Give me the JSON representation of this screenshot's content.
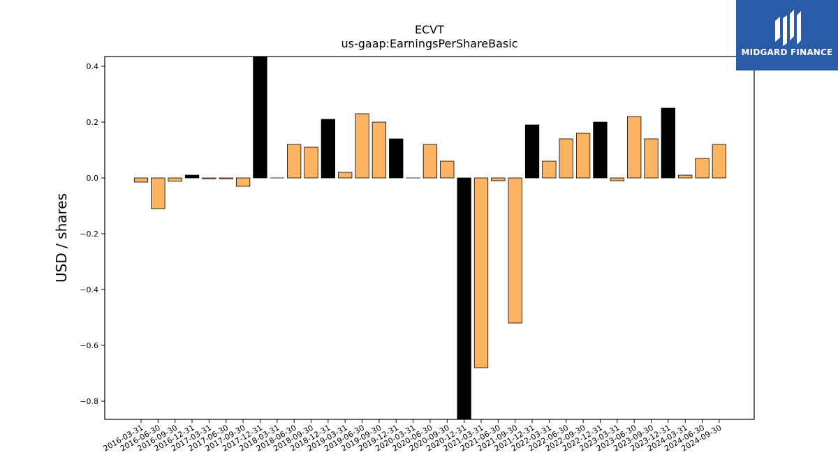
{
  "logo": {
    "text": "MIDGARD FINANCE",
    "icon": "midgard-logo-icon",
    "bg_color": "#2a5ba8"
  },
  "chart_data": {
    "type": "bar",
    "title": "ECVT",
    "subtitle": "us-gaap:EarningsPerShareBasic",
    "xlabel": "",
    "ylabel": "USD / shares",
    "ylim": [
      -0.865,
      0.435
    ],
    "yticks": [
      -0.8,
      -0.6,
      -0.4,
      -0.2,
      0.0,
      0.2,
      0.4
    ],
    "ytick_labels": [
      "−0.8",
      "−0.6",
      "−0.4",
      "−0.2",
      "0.0",
      "0.2",
      "0.4"
    ],
    "grid": false,
    "legend": "none",
    "colors": {
      "quarter": "#fdb462",
      "year_end": "#000000",
      "edge": "#000000"
    },
    "categories": [
      "2016-03-31",
      "2016-06-30",
      "2016-09-30",
      "2016-12-31",
      "2017-03-31",
      "2017-06-30",
      "2017-09-30",
      "2017-12-31",
      "2018-03-31",
      "2018-06-30",
      "2018-09-30",
      "2018-12-31",
      "2019-03-31",
      "2019-06-30",
      "2019-09-30",
      "2019-12-31",
      "2020-03-31",
      "2020-06-30",
      "2020-09-30",
      "2020-12-31",
      "2021-03-31",
      "2021-06-30",
      "2021-09-30",
      "2021-12-31",
      "2022-03-31",
      "2022-06-30",
      "2022-09-30",
      "2022-12-31",
      "2023-03-31",
      "2023-06-30",
      "2023-09-30",
      "2023-12-31",
      "2024-03-31",
      "2024-06-30",
      "2024-09-30"
    ],
    "values": [
      -0.015,
      -0.11,
      -0.012,
      0.01,
      -0.003,
      -0.003,
      -0.03,
      0.45,
      0.0,
      0.12,
      0.11,
      0.21,
      0.02,
      0.23,
      0.2,
      0.14,
      0.0,
      0.12,
      0.06,
      -0.9,
      -0.68,
      -0.01,
      -0.52,
      0.19,
      0.06,
      0.14,
      0.16,
      0.2,
      -0.01,
      0.22,
      0.14,
      0.25,
      0.01,
      0.07,
      0.12
    ],
    "year_end": [
      false,
      false,
      false,
      true,
      false,
      false,
      false,
      true,
      false,
      false,
      false,
      true,
      false,
      false,
      false,
      true,
      false,
      false,
      false,
      true,
      false,
      false,
      false,
      true,
      false,
      false,
      false,
      true,
      false,
      false,
      false,
      true,
      false,
      false,
      false
    ]
  }
}
